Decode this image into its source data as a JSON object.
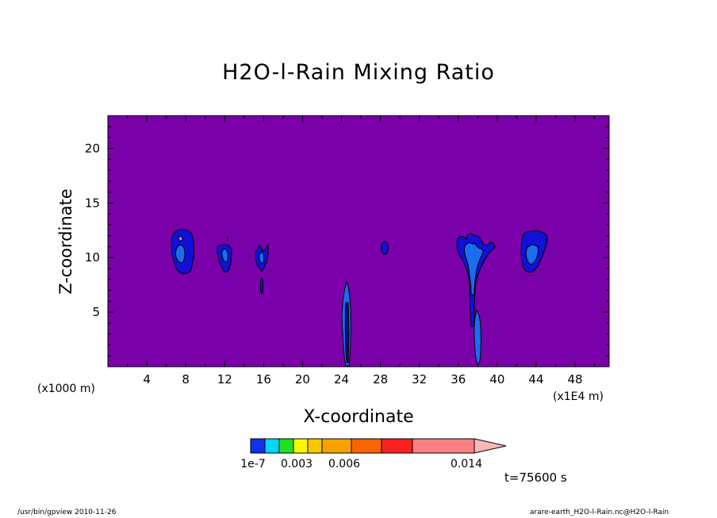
{
  "chart_data": {
    "type": "contour",
    "title": "H2O-l-Rain Mixing Ratio",
    "xlabel": "X-coordinate",
    "ylabel": "Z-coordinate",
    "x_unit_note": "(x1000 m)",
    "x_unit_note_right": "(x1E4 m)",
    "time_label": "t=75600 s",
    "xlim": [
      0,
      51.5
    ],
    "ylim": [
      0,
      23
    ],
    "x_ticks": [
      4,
      8,
      12,
      16,
      20,
      24,
      28,
      32,
      36,
      40,
      44,
      48
    ],
    "y_ticks": [
      5,
      10,
      15,
      20
    ],
    "background_color": "#7a00aa",
    "colorbar": {
      "levels_labels": [
        "1e-7",
        "0.003",
        "0.006",
        "0.014"
      ],
      "colors": [
        "#1030f0",
        "#00d8f8",
        "#20e020",
        "#f8f800",
        "#f8c800",
        "#f8a000",
        "#f86400",
        "#f82020",
        "#f88080",
        "#f8b8b8"
      ]
    },
    "features": [
      {
        "x": 7.7,
        "z": 10.3,
        "rx": 1.3,
        "rz": 2.1,
        "level": "1e-7"
      },
      {
        "x": 12.0,
        "z": 9.8,
        "rx": 0.8,
        "rz": 1.3,
        "level": "1e-7"
      },
      {
        "x": 15.8,
        "z": 10.0,
        "rx": 0.7,
        "rz": 1.2,
        "level": "1e-7"
      },
      {
        "x": 24.5,
        "z": 3.9,
        "rx": 0.4,
        "rz": 3.9,
        "level": "1e-7"
      },
      {
        "x": 28.2,
        "z": 10.8,
        "rx": 0.4,
        "rz": 0.6,
        "level": "1e-7"
      },
      {
        "x": 37.5,
        "z": 7.5,
        "rx": 1.8,
        "rz": 4.3,
        "level": "1e-7"
      },
      {
        "x": 43.5,
        "z": 10.5,
        "rx": 1.3,
        "rz": 2.1,
        "level": "1e-7"
      }
    ]
  },
  "footer": {
    "left": "/usr/bin/gpview   2010-11-26",
    "right": "arare-earth_H2O-l-Rain.nc@H2O-l-Rain"
  }
}
